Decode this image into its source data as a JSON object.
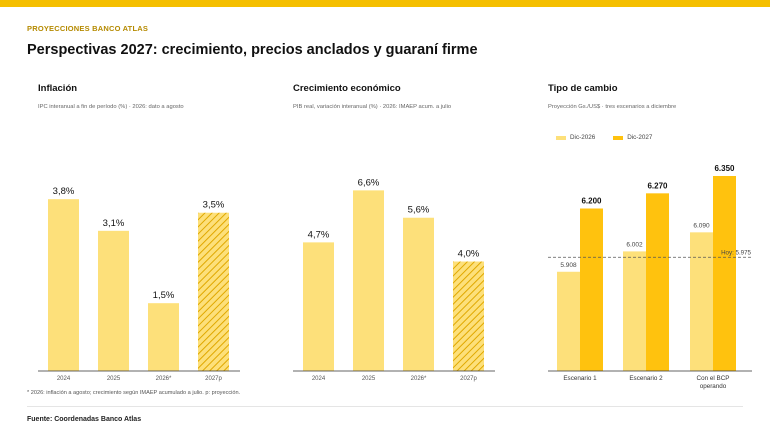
{
  "header": {
    "kicker": "PROYECCIONES BANCO ATLAS",
    "title": "Perspectivas 2027: crecimiento, precios anclados y guaraní firme"
  },
  "colors": {
    "accent": "#f5bf00",
    "light": "#fde07a",
    "dark": "#ffc20e",
    "axis": "#333333"
  },
  "chart_data": [
    {
      "type": "bar",
      "title": "Inflación",
      "subtitle": "IPC interanual a fin de período (%) · 2026: dato a agosto",
      "categories": [
        "2024",
        "2025",
        "2026*",
        "2027p"
      ],
      "values": [
        3.8,
        3.1,
        1.5,
        3.5
      ],
      "value_labels": [
        "3,8%",
        "3,1%",
        "1,5%",
        "3,5%"
      ],
      "projected": [
        false,
        false,
        false,
        true
      ],
      "ylim": [
        0,
        4.6
      ]
    },
    {
      "type": "bar",
      "title": "Crecimiento económico",
      "subtitle": "PIB real, variación interanual (%) · 2026: IMAEP acum. a julio",
      "categories": [
        "2024",
        "2025",
        "2026*",
        "2027p"
      ],
      "values": [
        4.7,
        6.6,
        5.6,
        4.0
      ],
      "value_labels": [
        "4,7%",
        "6,6%",
        "5,6%",
        "4,0%"
      ],
      "projected": [
        false,
        false,
        false,
        true
      ],
      "ylim": [
        0,
        7.6
      ]
    },
    {
      "type": "bar",
      "title": "Tipo de cambio",
      "subtitle": "Proyección Gs./US$ · tres escenarios a diciembre",
      "categories": [
        "Escenario 1",
        "Escenario 2",
        "Con el BCP operando"
      ],
      "category_lines": [
        [
          "Escenario 1"
        ],
        [
          "Escenario 2"
        ],
        [
          "Con el BCP",
          "operando"
        ]
      ],
      "series": [
        {
          "name": "Dic-2026",
          "values": [
            5908,
            6002,
            6090
          ],
          "value_labels": [
            "5.908",
            "6.002",
            "6.090"
          ]
        },
        {
          "name": "Dic-2027",
          "values": [
            6200,
            6270,
            6350
          ],
          "value_labels": [
            "6.200",
            "6.270",
            "6.350"
          ]
        }
      ],
      "reference": {
        "value": 5975,
        "label": "Hoy: 5.975"
      },
      "ylim": [
        5450,
        6410
      ],
      "legend": "top-left"
    }
  ],
  "footer": {
    "note": "* 2026: inflación a agosto; crecimiento según IMAEP acumulado a julio.  p: proyección.",
    "source": "Fuente: Coordenadas Banco Atlas"
  }
}
